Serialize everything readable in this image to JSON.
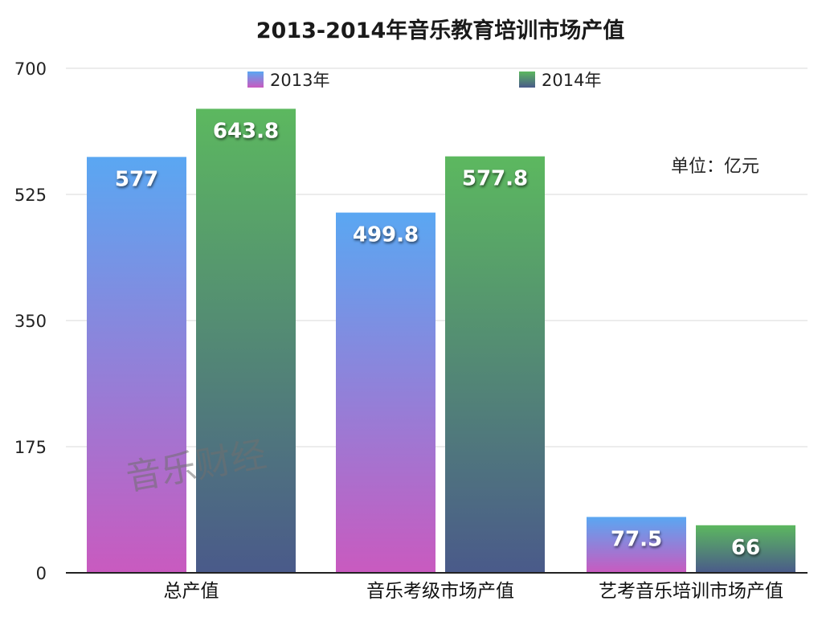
{
  "chart_data": {
    "type": "bar",
    "title": "2013-2014年音乐教育培训市场产值",
    "categories": [
      "总产值",
      "音乐考级市场产值",
      "艺考音乐培训市场产值"
    ],
    "series": [
      {
        "name": "2013年",
        "values": [
          577,
          499.8,
          77.5
        ],
        "data_labels": [
          "577",
          "499.8",
          "77.5"
        ],
        "color_top": "#5aa7f2",
        "color_bottom": "#c95abf"
      },
      {
        "name": "2014年",
        "values": [
          643.8,
          577.8,
          66
        ],
        "data_labels": [
          "643.8",
          "577.8",
          "66"
        ],
        "color_top": "#5cb85f",
        "color_bottom": "#4a5a8a"
      }
    ],
    "ylim": [
      0,
      700
    ],
    "yticks": [
      "700",
      "525",
      "350",
      "175",
      "0"
    ],
    "ytick_values": [
      700,
      525,
      350,
      175,
      0
    ],
    "grid": true,
    "legend_position": "top",
    "unit_label": "单位：亿元",
    "watermark": "音乐财经"
  }
}
